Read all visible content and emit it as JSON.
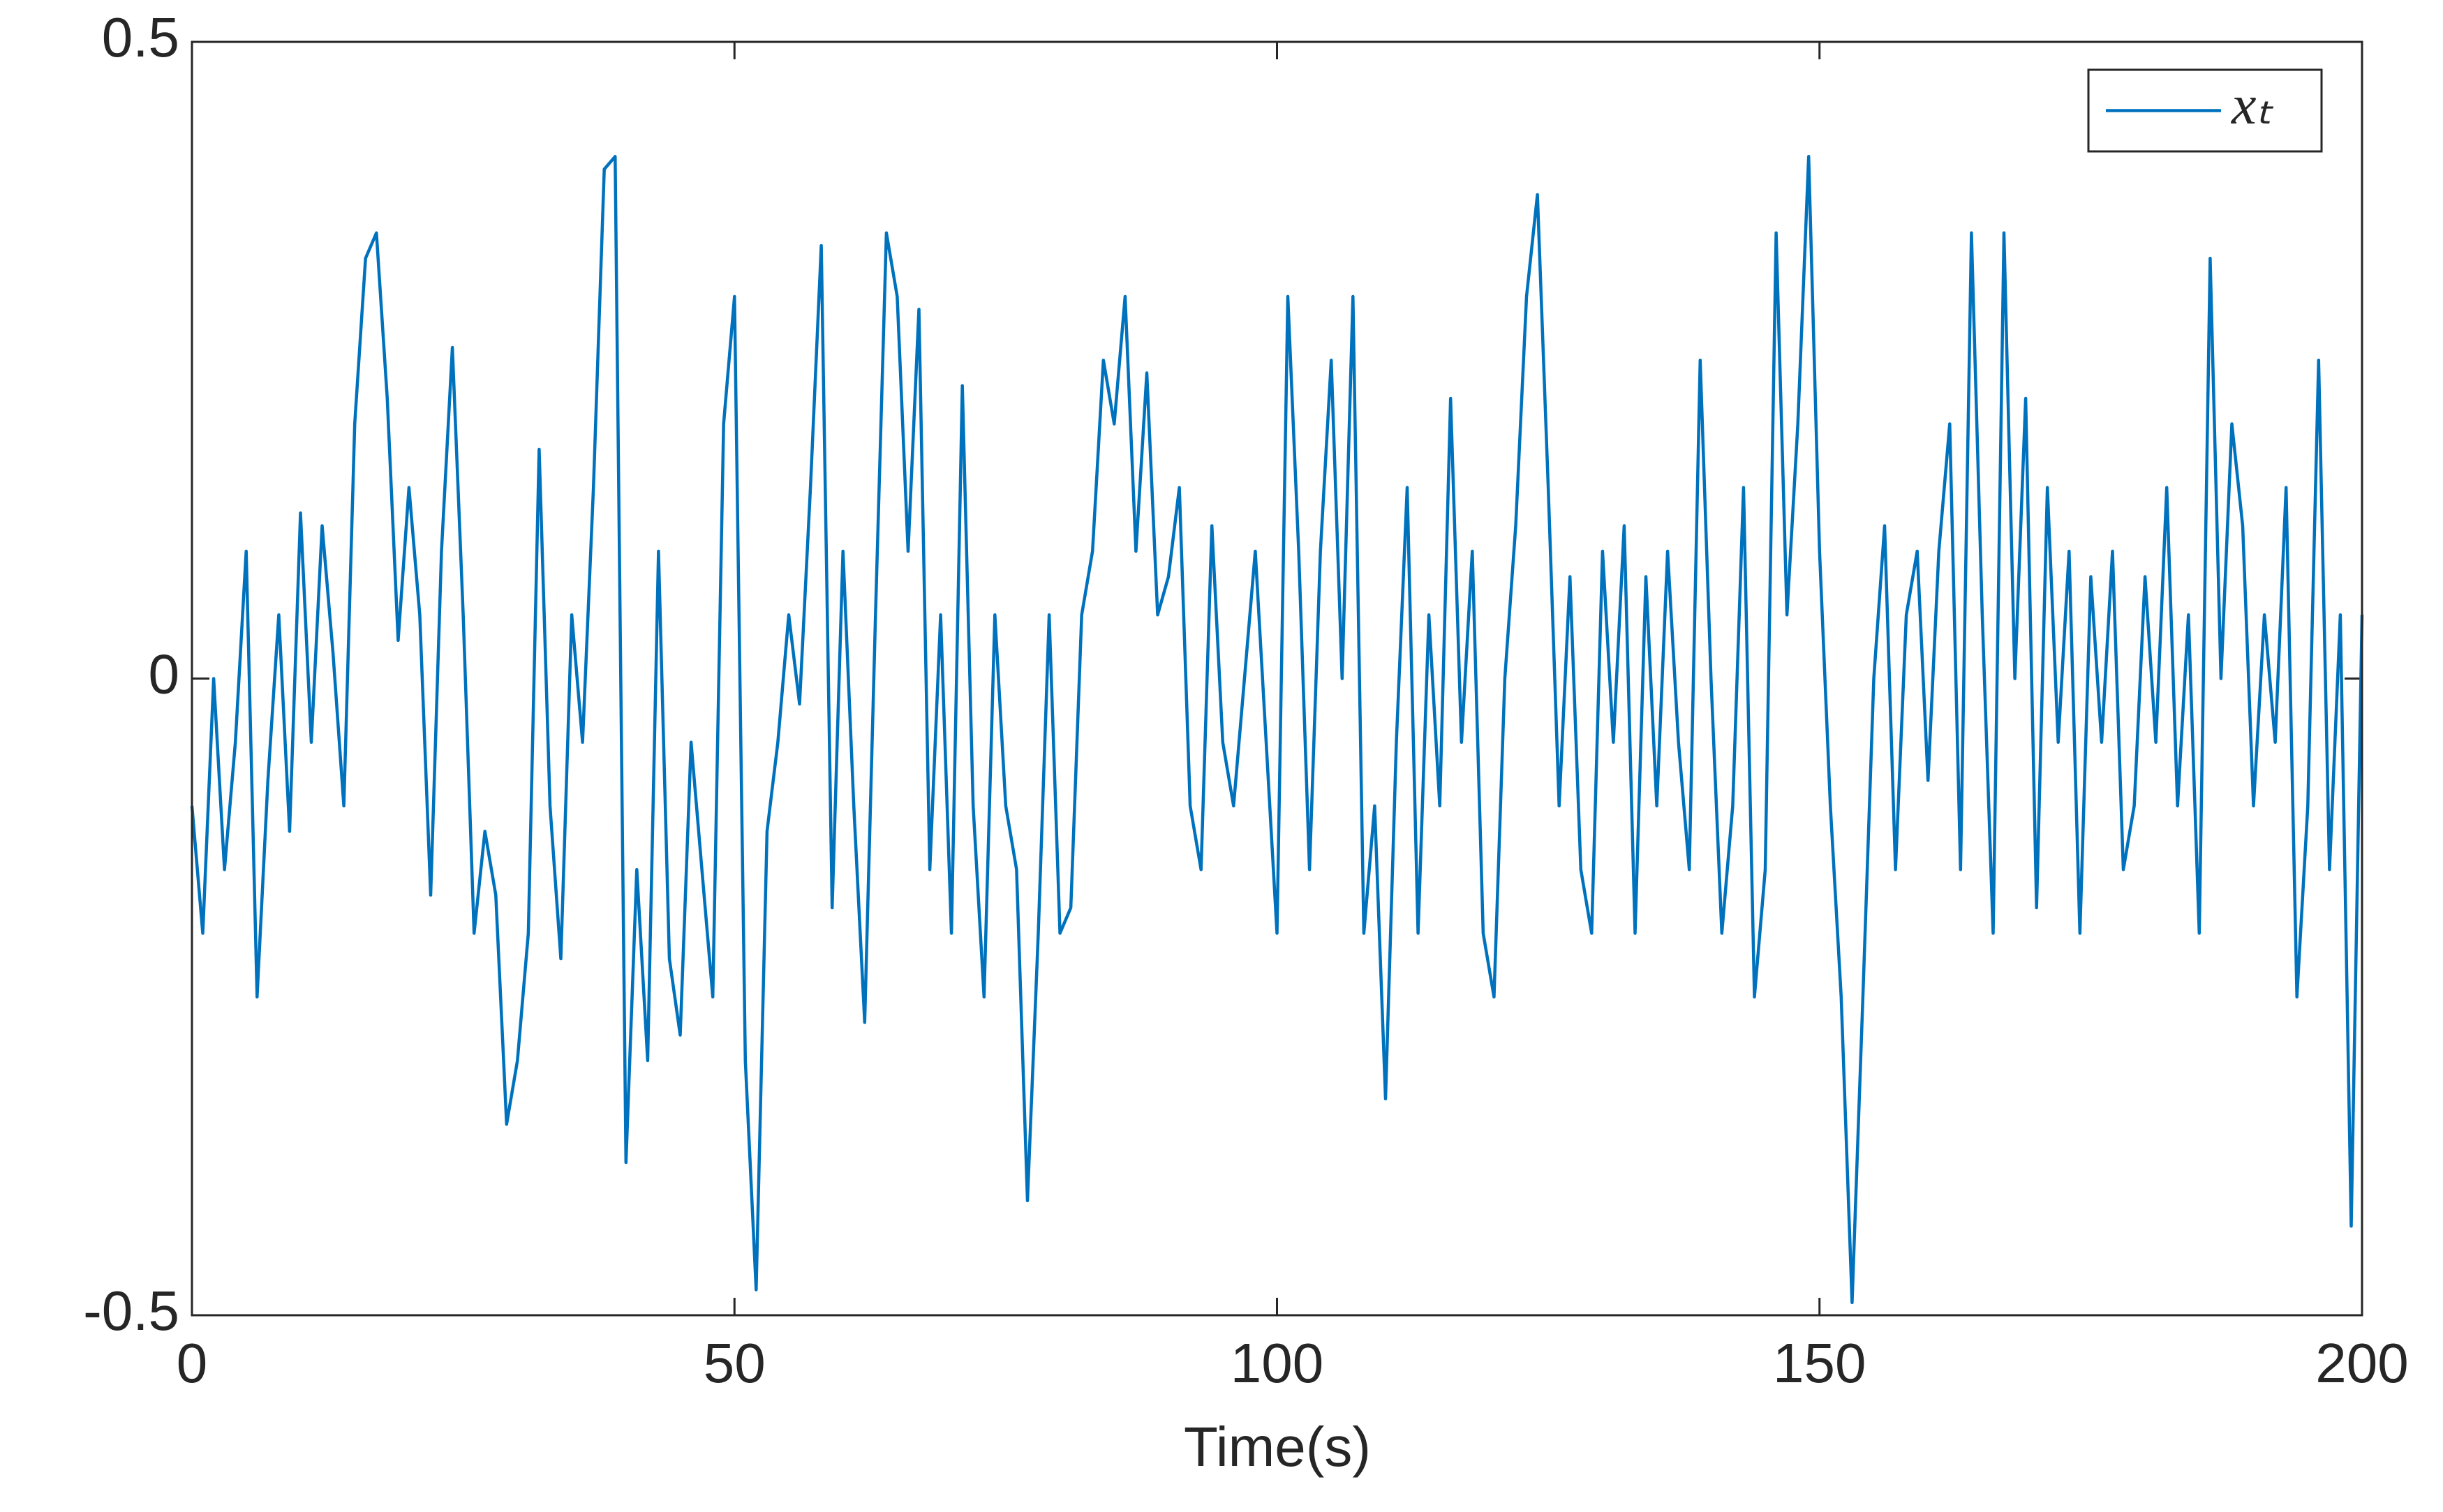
{
  "chart_data": {
    "type": "line",
    "xlabel": "Time(s)",
    "x": [
      0,
      1,
      2,
      3,
      4,
      5,
      6,
      7,
      8,
      9,
      10,
      11,
      12,
      13,
      14,
      15,
      16,
      17,
      18,
      19,
      20,
      21,
      22,
      23,
      24,
      25,
      26,
      27,
      28,
      29,
      30,
      31,
      32,
      33,
      34,
      35,
      36,
      37,
      38,
      39,
      40,
      41,
      42,
      43,
      44,
      45,
      46,
      47,
      48,
      49,
      50,
      51,
      52,
      53,
      54,
      55,
      56,
      57,
      58,
      59,
      60,
      61,
      62,
      63,
      64,
      65,
      66,
      67,
      68,
      69,
      70,
      71,
      72,
      73,
      74,
      75,
      76,
      77,
      78,
      79,
      80,
      81,
      82,
      83,
      84,
      85,
      86,
      87,
      88,
      89,
      90,
      91,
      92,
      93,
      94,
      95,
      96,
      97,
      98,
      99,
      100,
      101,
      102,
      103,
      104,
      105,
      106,
      107,
      108,
      109,
      110,
      111,
      112,
      113,
      114,
      115,
      116,
      117,
      118,
      119,
      120,
      121,
      122,
      123,
      124,
      125,
      126,
      127,
      128,
      129,
      130,
      131,
      132,
      133,
      134,
      135,
      136,
      137,
      138,
      139,
      140,
      141,
      142,
      143,
      144,
      145,
      146,
      147,
      148,
      149,
      150,
      151,
      152,
      153,
      154,
      155,
      156,
      157,
      158,
      159,
      160,
      161,
      162,
      163,
      164,
      165,
      166,
      167,
      168,
      169,
      170,
      171,
      172,
      173,
      174,
      175,
      176,
      177,
      178,
      179,
      180,
      181,
      182,
      183,
      184,
      185,
      186,
      187,
      188,
      189,
      190,
      191,
      192,
      193,
      194,
      195,
      196,
      197,
      198,
      199,
      200
    ],
    "series": [
      {
        "name": "xₜ",
        "color": "#0072bd",
        "values": [
          -0.1,
          -0.2,
          0.0,
          -0.15,
          -0.05,
          0.1,
          -0.25,
          -0.08,
          0.05,
          -0.12,
          0.13,
          -0.05,
          0.12,
          0.02,
          -0.1,
          0.2,
          0.33,
          0.35,
          0.22,
          0.03,
          0.15,
          0.05,
          -0.17,
          0.1,
          0.26,
          0.05,
          -0.2,
          -0.12,
          -0.17,
          -0.35,
          -0.3,
          -0.2,
          0.18,
          -0.1,
          -0.22,
          0.05,
          -0.05,
          0.15,
          0.4,
          0.41,
          -0.38,
          -0.15,
          -0.3,
          0.1,
          -0.22,
          -0.28,
          -0.05,
          -0.15,
          -0.25,
          0.2,
          0.3,
          -0.3,
          -0.48,
          -0.12,
          -0.05,
          0.05,
          -0.02,
          0.15,
          0.34,
          -0.18,
          0.1,
          -0.1,
          -0.27,
          0.05,
          0.35,
          0.3,
          0.1,
          0.29,
          -0.15,
          0.05,
          -0.2,
          0.23,
          -0.1,
          -0.25,
          0.05,
          -0.1,
          -0.15,
          -0.41,
          -0.2,
          0.05,
          -0.2,
          -0.18,
          0.05,
          0.1,
          0.25,
          0.2,
          0.3,
          0.1,
          0.24,
          0.05,
          0.08,
          0.15,
          -0.1,
          -0.15,
          0.12,
          -0.05,
          -0.1,
          0.0,
          0.1,
          -0.05,
          -0.2,
          0.3,
          0.1,
          -0.15,
          0.1,
          0.25,
          0.0,
          0.3,
          -0.2,
          -0.1,
          -0.33,
          -0.05,
          0.15,
          -0.2,
          0.05,
          -0.1,
          0.22,
          -0.05,
          0.1,
          -0.2,
          -0.25,
          0.0,
          0.12,
          0.3,
          0.38,
          0.15,
          -0.1,
          0.08,
          -0.15,
          -0.2,
          0.1,
          -0.05,
          0.12,
          -0.2,
          0.08,
          -0.1,
          0.1,
          -0.05,
          -0.15,
          0.25,
          0.0,
          -0.2,
          -0.1,
          0.15,
          -0.25,
          -0.15,
          0.35,
          0.05,
          0.2,
          0.41,
          0.1,
          -0.1,
          -0.25,
          -0.49,
          -0.25,
          0.0,
          0.12,
          -0.15,
          0.05,
          0.1,
          -0.08,
          0.1,
          0.2,
          -0.15,
          0.35,
          0.05,
          -0.2,
          0.35,
          0.0,
          0.22,
          -0.18,
          0.15,
          -0.05,
          0.1,
          -0.2,
          0.08,
          -0.05,
          0.1,
          -0.15,
          -0.1,
          0.08,
          -0.05,
          0.15,
          -0.1,
          0.05,
          -0.2,
          0.33,
          0.0,
          0.2,
          0.12,
          -0.1,
          0.05,
          -0.05,
          0.15,
          -0.25,
          -0.1,
          0.25,
          -0.15,
          0.05,
          -0.43,
          0.05
        ]
      }
    ],
    "xlim": [
      0,
      200
    ],
    "xticks": [
      0,
      50,
      100,
      150,
      200
    ],
    "ylim": [
      -0.5,
      0.5
    ],
    "yticks": [
      -0.5,
      0,
      0.5
    ],
    "grid": false,
    "legend": "northeast"
  }
}
